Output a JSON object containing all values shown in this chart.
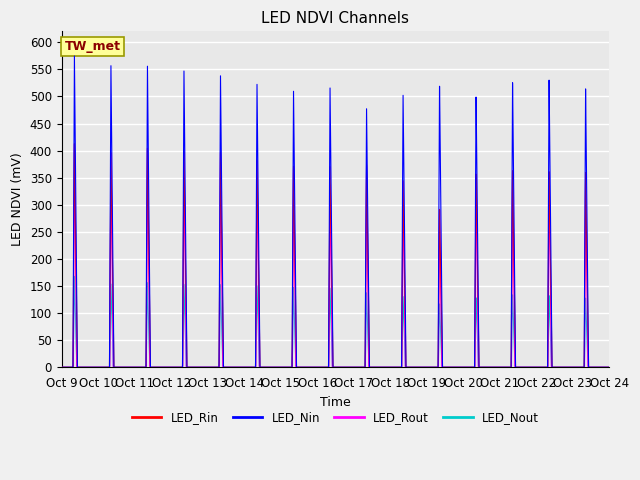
{
  "title": "LED NDVI Channels",
  "xlabel": "Time",
  "ylabel": "LED NDVI (mV)",
  "ylim": [
    0,
    620
  ],
  "yticks": [
    0,
    50,
    100,
    150,
    200,
    250,
    300,
    350,
    400,
    450,
    500,
    550,
    600
  ],
  "n_days": 15,
  "xtick_labels": [
    "Oct 9",
    "Oct 10",
    "Oct 11",
    "Oct 12",
    "Oct 13",
    "Oct 14",
    "Oct 15",
    "Oct 16",
    "Oct 17",
    "Oct 18",
    "Oct 19",
    "Oct 20",
    "Oct 21",
    "Oct 22",
    "Oct 23",
    "Oct 24"
  ],
  "annotation_text": "TW_met",
  "annotation_color": "#8B0000",
  "annotation_bg": "#FFFF99",
  "annotation_edge": "#999900",
  "colors": {
    "LED_Rin": "#FF0000",
    "LED_Nin": "#0000FF",
    "LED_Rout": "#FF00FF",
    "LED_Nout": "#00CCCC"
  },
  "bg_color": "#E8E8E8",
  "fig_bg_color": "#F0F0F0",
  "grid_color": "#FFFFFF",
  "spike_centers": [
    0.35,
    1.35,
    2.35,
    3.35,
    4.35,
    5.35,
    6.35,
    7.35,
    8.35,
    9.35,
    10.35,
    11.35,
    12.35,
    13.35,
    14.35
  ],
  "spike_peaks_Nin": [
    575,
    558,
    558,
    550,
    542,
    527,
    515,
    522,
    484,
    510,
    527,
    505,
    530,
    533,
    515
  ],
  "spike_peaks_Rin": [
    413,
    397,
    406,
    400,
    400,
    386,
    375,
    375,
    379,
    350,
    296,
    361,
    366,
    363,
    360
  ],
  "spike_peaks_Rout": [
    413,
    397,
    406,
    400,
    400,
    385,
    372,
    342,
    379,
    350,
    296,
    362,
    366,
    362,
    360
  ],
  "spike_peaks_Nout": [
    168,
    154,
    157,
    154,
    154,
    152,
    149,
    148,
    140,
    133,
    119,
    130,
    135,
    133,
    128
  ],
  "spike_rise": 0.04,
  "spike_fall": 0.08,
  "spike_rise_Nout": 0.035,
  "spike_fall_Nout": 0.065
}
